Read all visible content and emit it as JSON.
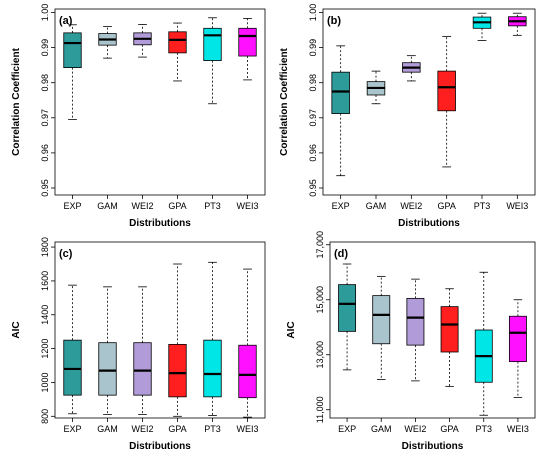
{
  "chart_data": [
    {
      "type": "boxplot",
      "panel_label": "(a)",
      "xlabel": "Distributions",
      "ylabel": "Correlation Coefficient",
      "ylim": [
        0.948,
        1.001
      ],
      "yticks": [
        0.95,
        0.96,
        0.97,
        0.98,
        0.99,
        1.0
      ],
      "ytick_labels": [
        "0.95",
        "0.96",
        "0.97",
        "0.98",
        "0.99",
        "1.00"
      ],
      "categories": [
        "EXP",
        "GAM",
        "WEI2",
        "GPA",
        "PT3",
        "WEI3"
      ],
      "colors": [
        "#2e9b9b",
        "#a9c4cc",
        "#b19bd8",
        "#ff1f1f",
        "#00e6e6",
        "#ff10ff"
      ],
      "boxes": [
        {
          "min": 0.9695,
          "q1": 0.9843,
          "median": 0.9913,
          "q3": 0.9942,
          "max": 0.9965
        },
        {
          "min": 0.987,
          "q1": 0.9907,
          "median": 0.9923,
          "q3": 0.994,
          "max": 0.996
        },
        {
          "min": 0.9873,
          "q1": 0.9908,
          "median": 0.9925,
          "q3": 0.9942,
          "max": 0.9966
        },
        {
          "min": 0.9805,
          "q1": 0.9885,
          "median": 0.9922,
          "q3": 0.9945,
          "max": 0.997
        },
        {
          "min": 0.974,
          "q1": 0.9863,
          "median": 0.9935,
          "q3": 0.9955,
          "max": 0.9985
        },
        {
          "min": 0.9808,
          "q1": 0.9876,
          "median": 0.9933,
          "q3": 0.9955,
          "max": 0.9983
        }
      ]
    },
    {
      "type": "boxplot",
      "panel_label": "(b)",
      "xlabel": "Distributions",
      "ylabel": "Correlation Coefficient",
      "ylim": [
        0.948,
        1.001
      ],
      "yticks": [
        0.95,
        0.96,
        0.97,
        0.98,
        0.99,
        1.0
      ],
      "ytick_labels": [
        "0.95",
        "0.96",
        "0.97",
        "0.98",
        "0.99",
        "1.00"
      ],
      "categories": [
        "EXP",
        "GAM",
        "WEI2",
        "GPA",
        "PT3",
        "WEI3"
      ],
      "colors": [
        "#2e9b9b",
        "#a9c4cc",
        "#b19bd8",
        "#ff1f1f",
        "#00e6e6",
        "#ff10ff"
      ],
      "boxes": [
        {
          "min": 0.9535,
          "q1": 0.9712,
          "median": 0.9775,
          "q3": 0.983,
          "max": 0.9905
        },
        {
          "min": 0.974,
          "q1": 0.9765,
          "median": 0.9785,
          "q3": 0.9803,
          "max": 0.9833
        },
        {
          "min": 0.9805,
          "q1": 0.983,
          "median": 0.9843,
          "q3": 0.9857,
          "max": 0.9877
        },
        {
          "min": 0.956,
          "q1": 0.972,
          "median": 0.9787,
          "q3": 0.9833,
          "max": 0.9932
        },
        {
          "min": 0.992,
          "q1": 0.9955,
          "median": 0.9972,
          "q3": 0.9987,
          "max": 0.9998
        },
        {
          "min": 0.9935,
          "q1": 0.9962,
          "median": 0.9975,
          "q3": 0.9988,
          "max": 0.9998
        }
      ]
    },
    {
      "type": "boxplot",
      "panel_label": "(c)",
      "xlabel": "Distributions",
      "ylabel": "AIC",
      "ylim": [
        790,
        1830
      ],
      "yticks": [
        800,
        1000,
        1200,
        1400,
        1600,
        1800
      ],
      "ytick_labels": [
        "800",
        "1000",
        "1200",
        "1400",
        "1600",
        "1800"
      ],
      "categories": [
        "EXP",
        "GAM",
        "WEI2",
        "GPA",
        "PT3",
        "WEI3"
      ],
      "colors": [
        "#2e9b9b",
        "#a9c4cc",
        "#b19bd8",
        "#ff1f1f",
        "#00e6e6",
        "#ff10ff"
      ],
      "boxes": [
        {
          "min": 815,
          "q1": 925,
          "median": 1080,
          "q3": 1250,
          "max": 1575
        },
        {
          "min": 810,
          "q1": 925,
          "median": 1070,
          "q3": 1235,
          "max": 1565
        },
        {
          "min": 810,
          "q1": 925,
          "median": 1070,
          "q3": 1235,
          "max": 1565
        },
        {
          "min": 800,
          "q1": 915,
          "median": 1055,
          "q3": 1225,
          "max": 1700
        },
        {
          "min": 805,
          "q1": 915,
          "median": 1050,
          "q3": 1250,
          "max": 1710
        },
        {
          "min": 795,
          "q1": 910,
          "median": 1045,
          "q3": 1220,
          "max": 1670
        }
      ]
    },
    {
      "type": "boxplot",
      "panel_label": "(d)",
      "xlabel": "Distributions",
      "ylabel": "AIC",
      "ylim": [
        10700,
        17100
      ],
      "yticks": [
        11000,
        13000,
        15000,
        17000
      ],
      "ytick_labels": [
        "11,000",
        "13,000",
        "15,000",
        "17,000"
      ],
      "categories": [
        "EXP",
        "GAM",
        "WEI2",
        "GPA",
        "PT3",
        "WEI3"
      ],
      "colors": [
        "#2e9b9b",
        "#a9c4cc",
        "#b19bd8",
        "#ff1f1f",
        "#00e6e6",
        "#ff10ff"
      ],
      "boxes": [
        {
          "min": 12450,
          "q1": 13850,
          "median": 14850,
          "q3": 15550,
          "max": 16300
        },
        {
          "min": 12100,
          "q1": 13400,
          "median": 14450,
          "q3": 15150,
          "max": 15850
        },
        {
          "min": 12050,
          "q1": 13350,
          "median": 14350,
          "q3": 15050,
          "max": 15750
        },
        {
          "min": 11850,
          "q1": 13100,
          "median": 14100,
          "q3": 14750,
          "max": 15400
        },
        {
          "min": 10800,
          "q1": 12000,
          "median": 12950,
          "q3": 13900,
          "max": 16000
        },
        {
          "min": 11450,
          "q1": 12750,
          "median": 13800,
          "q3": 14400,
          "max": 15000
        }
      ]
    }
  ]
}
